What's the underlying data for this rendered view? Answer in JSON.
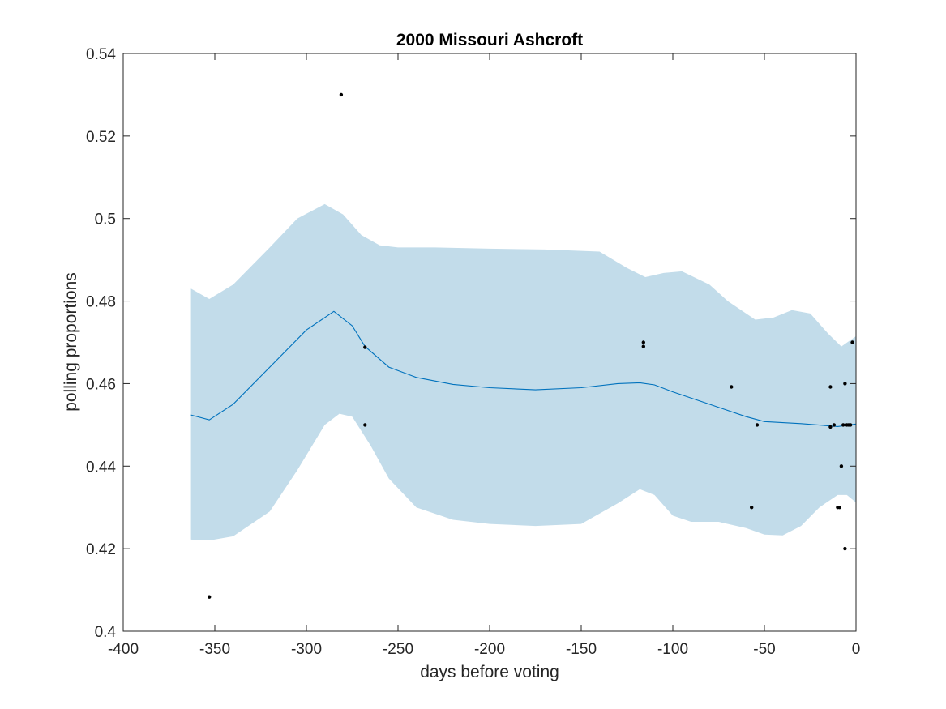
{
  "chart_data": {
    "type": "line",
    "title": "2000 Missouri Ashcroft",
    "xlabel": "days before voting",
    "ylabel": "polling proportions",
    "xlim": [
      -400,
      0
    ],
    "ylim": [
      0.4,
      0.54
    ],
    "xticks": [
      -400,
      -350,
      -300,
      -250,
      -200,
      -150,
      -100,
      -50,
      0
    ],
    "yticks": [
      0.4,
      0.42,
      0.44,
      0.46,
      0.48,
      0.5,
      0.52,
      0.54
    ],
    "xtick_labels": [
      "-400",
      "-350",
      "-300",
      "-250",
      "-200",
      "-150",
      "-100",
      "-50",
      "0"
    ],
    "ytick_labels": [
      "0.4",
      "0.42",
      "0.44",
      "0.46",
      "0.48",
      "0.5",
      "0.52",
      "0.54"
    ],
    "grid": false,
    "colors": {
      "mean_line": "#0072BD",
      "band_fill": "#c2dcea",
      "points": "#000000",
      "axes": "#262626"
    },
    "mean": {
      "x": [
        -363,
        -353,
        -340,
        -320,
        -300,
        -285,
        -275,
        -268,
        -255,
        -240,
        -220,
        -200,
        -175,
        -150,
        -130,
        -118,
        -110,
        -100,
        -80,
        -60,
        -50,
        -30,
        -10,
        0
      ],
      "y": [
        0.4524,
        0.4512,
        0.455,
        0.464,
        0.473,
        0.4775,
        0.474,
        0.469,
        0.464,
        0.4615,
        0.4598,
        0.459,
        0.4585,
        0.459,
        0.46,
        0.4602,
        0.4597,
        0.458,
        0.455,
        0.452,
        0.4508,
        0.4503,
        0.4496,
        0.4502
      ]
    },
    "band_upper": {
      "x": [
        -363,
        -353,
        -340,
        -320,
        -305,
        -290,
        -280,
        -270,
        -260,
        -250,
        -230,
        -200,
        -170,
        -140,
        -125,
        -115,
        -105,
        -95,
        -80,
        -70,
        -55,
        -45,
        -35,
        -25,
        -15,
        -8,
        0
      ],
      "y": [
        0.483,
        0.4805,
        0.484,
        0.493,
        0.5,
        0.5035,
        0.501,
        0.496,
        0.4935,
        0.493,
        0.493,
        0.4927,
        0.4925,
        0.492,
        0.488,
        0.4858,
        0.4868,
        0.4872,
        0.484,
        0.48,
        0.4755,
        0.476,
        0.4778,
        0.477,
        0.472,
        0.469,
        0.4715
      ]
    },
    "band_lower": {
      "x": [
        -363,
        -353,
        -340,
        -320,
        -305,
        -290,
        -282,
        -275,
        -265,
        -255,
        -240,
        -220,
        -200,
        -175,
        -150,
        -130,
        -118,
        -110,
        -100,
        -90,
        -75,
        -60,
        -50,
        -40,
        -30,
        -20,
        -10,
        -5,
        0
      ],
      "y": [
        0.4222,
        0.422,
        0.423,
        0.429,
        0.439,
        0.45,
        0.4527,
        0.452,
        0.445,
        0.437,
        0.43,
        0.427,
        0.426,
        0.4255,
        0.426,
        0.431,
        0.4344,
        0.433,
        0.428,
        0.4265,
        0.4265,
        0.425,
        0.4234,
        0.4232,
        0.4255,
        0.43,
        0.433,
        0.433,
        0.4312
      ]
    },
    "points": {
      "x": [
        -353,
        -281,
        -268,
        -268,
        -116,
        -116,
        -68,
        -57,
        -54,
        -14,
        -14,
        -12,
        -10,
        -9,
        -8,
        -7,
        -6,
        -6,
        -5,
        -4,
        -3,
        -2
      ],
      "y": [
        0.4083,
        0.53,
        0.4688,
        0.45,
        0.47,
        0.469,
        0.4592,
        0.43,
        0.45,
        0.4592,
        0.4495,
        0.45,
        0.43,
        0.43,
        0.44,
        0.45,
        0.46,
        0.42,
        0.45,
        0.45,
        0.45,
        0.47
      ]
    }
  }
}
